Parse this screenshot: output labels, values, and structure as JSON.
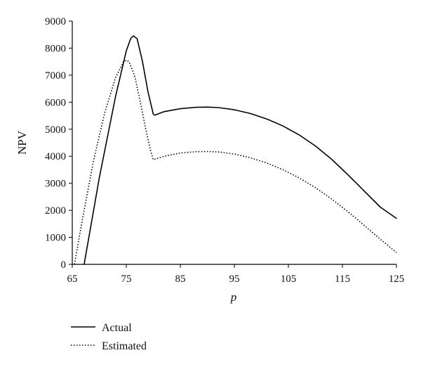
{
  "chart_data": {
    "type": "line",
    "title": "",
    "xlabel": "p",
    "ylabel": "NPV",
    "xlim": [
      65,
      125
    ],
    "ylim": [
      0,
      9000
    ],
    "xticks": [
      65,
      75,
      85,
      95,
      105,
      115,
      125
    ],
    "yticks": [
      0,
      1000,
      2000,
      3000,
      4000,
      5000,
      6000,
      7000,
      8000,
      9000
    ],
    "grid": false,
    "legend": "bottom-left",
    "series": [
      {
        "name": "Actual",
        "style": "solid",
        "color": "#000000",
        "x": [
          67.2,
          70,
          73,
          75,
          75.8,
          76.3,
          77,
          78,
          79,
          80,
          80.3,
          82,
          85,
          88,
          90,
          92,
          95,
          98,
          101,
          104,
          107,
          110,
          113,
          116,
          119,
          122,
          125
        ],
        "y": [
          0,
          3200,
          6200,
          7900,
          8350,
          8450,
          8350,
          7500,
          6400,
          5550,
          5520,
          5650,
          5760,
          5810,
          5820,
          5800,
          5720,
          5580,
          5380,
          5120,
          4790,
          4380,
          3890,
          3320,
          2720,
          2120,
          1700
        ]
      },
      {
        "name": "Estimated",
        "style": "dotted",
        "color": "#000000",
        "x": [
          65.4,
          67,
          69,
          71,
          73,
          74.5,
          75,
          75.5,
          76.5,
          77.5,
          78.5,
          79.5,
          80,
          82,
          85,
          88,
          90,
          92,
          95,
          98,
          101,
          104,
          107,
          110,
          113,
          116,
          119,
          122,
          125
        ],
        "y": [
          0,
          1800,
          3900,
          5600,
          6900,
          7500,
          7550,
          7500,
          7000,
          6100,
          5100,
          4200,
          3870,
          4000,
          4120,
          4170,
          4175,
          4160,
          4080,
          3940,
          3750,
          3500,
          3200,
          2840,
          2420,
          1950,
          1450,
          930,
          440
        ]
      }
    ]
  }
}
